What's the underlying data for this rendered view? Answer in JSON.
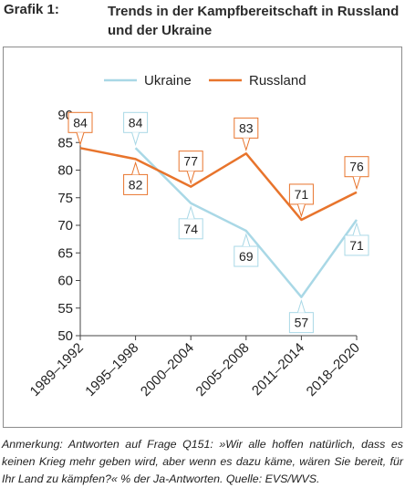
{
  "header": {
    "label": "Grafik 1:",
    "title": "Trends in der Kampfbereitschaft in Russland und der Ukraine"
  },
  "note": "Anmerkung: Antworten auf Frage Q151: »Wir alle hoffen natürlich, dass es keinen Krieg mehr geben wird, aber wenn es dazu käme, wären Sie bereit, für Ihr Land zu kämpfen?« % der Ja-Antworten. Quelle: EVS/WVS.",
  "chart_data": {
    "type": "line",
    "categories": [
      "1989–1992",
      "1995–1998",
      "2000–2004",
      "2005–2008",
      "2011–2014",
      "2018–2020"
    ],
    "ylim": [
      50,
      90
    ],
    "yticks": [
      50,
      55,
      60,
      65,
      70,
      75,
      80,
      85,
      90
    ],
    "grid": false,
    "legend_position": "top-center",
    "series": [
      {
        "name": "Ukraine",
        "color": "#a9d8e6",
        "values": [
          null,
          84,
          74,
          69,
          57,
          71
        ],
        "labels": [
          "",
          "84",
          "74",
          "69",
          "57",
          "71"
        ]
      },
      {
        "name": "Russland",
        "color": "#e8742c",
        "values": [
          84,
          82,
          77,
          83,
          71,
          76
        ],
        "labels": [
          "84",
          "82",
          "77",
          "83",
          "71",
          "76"
        ]
      }
    ]
  }
}
